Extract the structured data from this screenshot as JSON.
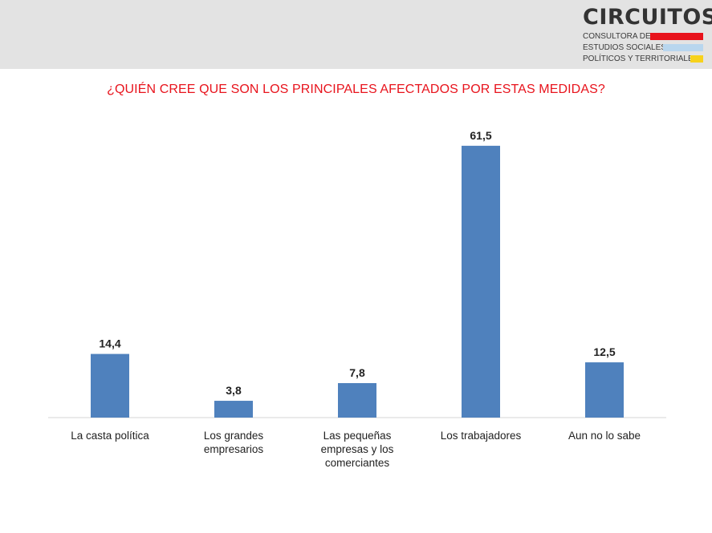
{
  "header": {
    "logo": {
      "name": "CIRCUITOS",
      "lines": [
        "CONSULTORA DE",
        "ESTUDIOS SOCIALES,",
        "POLÍTICOS Y TERRITORIALES"
      ],
      "stripe_colors": [
        "#e8131c",
        "#b8d6ee",
        "#f7d21c"
      ]
    }
  },
  "chart_data": {
    "type": "bar",
    "title": "¿QUIÉN CREE QUE SON LOS PRINCIPALES AFECTADOS POR ESTAS MEDIDAS?",
    "categories": [
      "La casta política",
      "Los grandes empresarios",
      "Las pequeñas empresas y los comerciantes",
      "Los trabajadores",
      "Aun no lo sabe"
    ],
    "values": [
      14.4,
      3.8,
      7.8,
      61.5,
      12.5
    ],
    "value_labels": [
      "14,4",
      "3,8",
      "7,8",
      "61,5",
      "12,5"
    ],
    "ylim": [
      0,
      70
    ],
    "grid": false,
    "bar_color": "#4f81bd",
    "title_color": "#e8131c"
  }
}
